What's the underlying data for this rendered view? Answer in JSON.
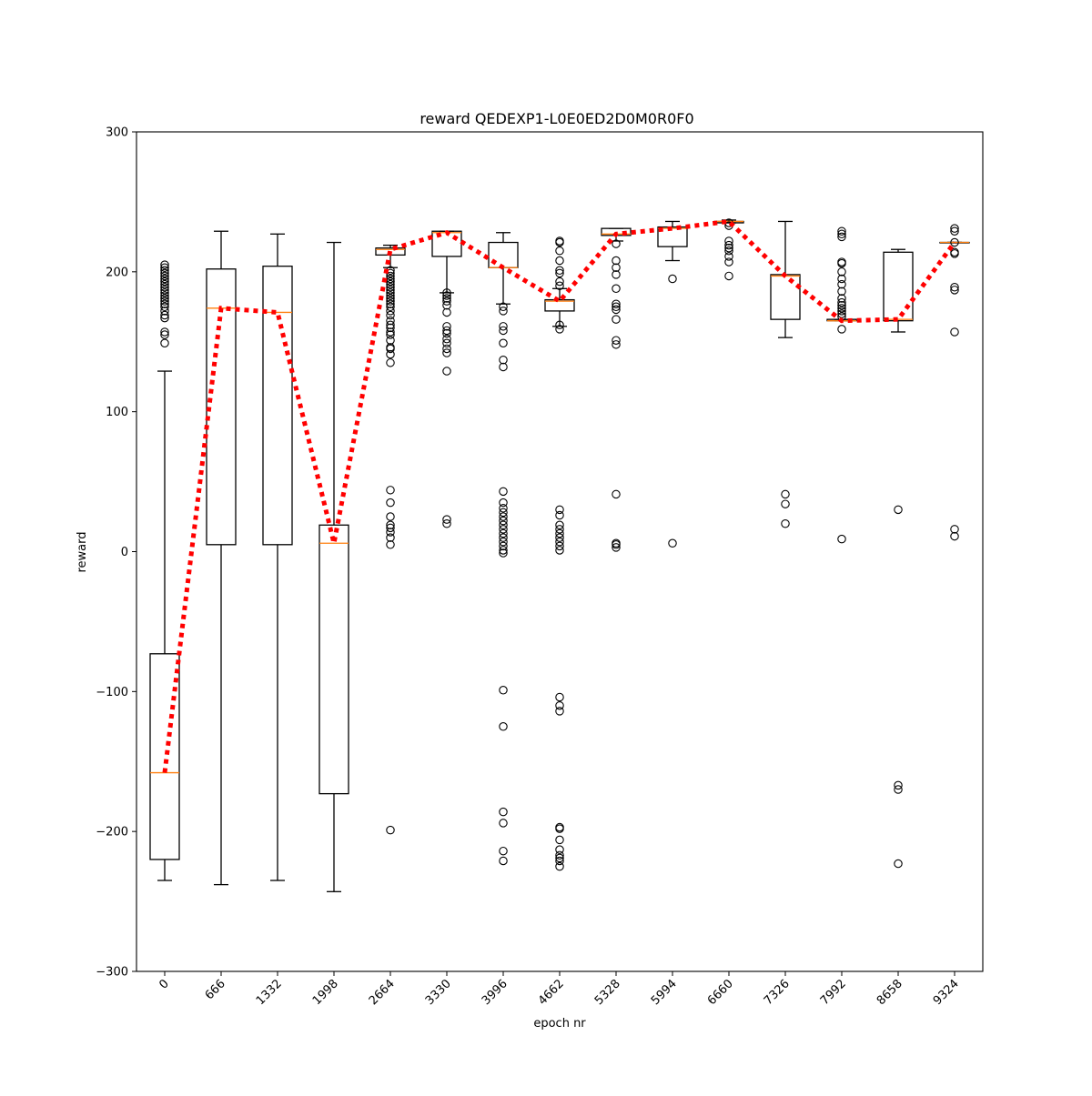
{
  "chart_data": {
    "type": "box",
    "title": "reward QEDEXP1-L0E0ED2D0M0R0F0",
    "xlabel": "epoch nr",
    "ylabel": "reward",
    "ylim": [
      -300,
      300
    ],
    "yticks": [
      -300,
      -200,
      -100,
      0,
      100,
      200,
      300
    ],
    "grid": false,
    "colors": {
      "box": "#000000",
      "median": "#ff7f0e",
      "trend": "#ff0000"
    },
    "categories": [
      "0",
      "666",
      "1332",
      "1998",
      "2664",
      "3330",
      "3996",
      "4662",
      "5328",
      "5994",
      "6660",
      "7326",
      "7992",
      "8658",
      "9324"
    ],
    "boxes": [
      {
        "whisker_low": -235,
        "q1": -220,
        "median": -158,
        "q3": -73,
        "whisker_high": 129,
        "outliers": [
          205,
          203,
          201,
          199,
          197,
          195,
          193,
          191,
          189,
          187,
          185,
          183,
          181,
          179,
          177,
          175,
          172,
          169,
          167,
          157,
          155,
          149
        ]
      },
      {
        "whisker_low": -238,
        "q1": 5,
        "median": 174,
        "q3": 202,
        "whisker_high": 229,
        "outliers": []
      },
      {
        "whisker_low": -235,
        "q1": 5,
        "median": 171,
        "q3": 204,
        "whisker_high": 227,
        "outliers": []
      },
      {
        "whisker_low": -243,
        "q1": -173,
        "median": 6,
        "q3": 19,
        "whisker_high": 221,
        "outliers": []
      },
      {
        "whisker_low": 203,
        "q1": 212,
        "median": 216,
        "q3": 217,
        "whisker_high": 219,
        "outliers": [
          201,
          199,
          197,
          195,
          193,
          191,
          189,
          187,
          185,
          183,
          181,
          179,
          177,
          175,
          172,
          169,
          165,
          162,
          160,
          157,
          155,
          151,
          146,
          145,
          141,
          135,
          44,
          35,
          25,
          19,
          17,
          14,
          10,
          5,
          -199
        ]
      },
      {
        "whisker_low": 185,
        "q1": 211,
        "median": 228,
        "q3": 229,
        "whisker_high": 229,
        "outliers": [
          185,
          183,
          181,
          179,
          176,
          171,
          161,
          158,
          156,
          152,
          149,
          145,
          142,
          129,
          23,
          20
        ]
      },
      {
        "whisker_low": 177,
        "q1": 203,
        "median": 203,
        "q3": 221,
        "whisker_high": 228,
        "outliers": [
          175,
          172,
          161,
          158,
          149,
          137,
          132,
          43,
          35,
          31,
          28,
          25,
          22,
          19,
          16,
          13,
          10,
          7,
          4,
          1,
          -1,
          -99,
          -125,
          -186,
          -194,
          -214,
          -221
        ]
      },
      {
        "whisker_low": 161,
        "q1": 172,
        "median": 179,
        "q3": 180,
        "whisker_high": 188,
        "outliers": [
          222,
          221,
          215,
          208,
          201,
          199,
          193,
          190,
          162,
          159,
          30,
          26,
          19,
          16,
          13,
          10,
          7,
          4,
          1,
          -104,
          -110,
          -114,
          -197,
          -198,
          -206,
          -213,
          -217,
          -219,
          -221,
          -225
        ]
      },
      {
        "whisker_low": 222,
        "q1": 226,
        "median": 227,
        "q3": 231,
        "whisker_high": 231,
        "outliers": [
          220,
          208,
          203,
          198,
          188,
          177,
          175,
          173,
          166,
          151,
          148,
          41,
          6,
          5,
          3
        ]
      },
      {
        "whisker_low": 208,
        "q1": 218,
        "median": 231,
        "q3": 232,
        "whisker_high": 236,
        "outliers": [
          195,
          6
        ]
      },
      {
        "whisker_low": 235,
        "q1": 235,
        "median": 236,
        "q3": 236,
        "whisker_high": 237,
        "outliers": [
          235,
          233,
          222,
          219,
          217,
          215,
          211,
          207,
          197
        ]
      },
      {
        "whisker_low": 153,
        "q1": 166,
        "median": 197,
        "q3": 198,
        "whisker_high": 236,
        "outliers": [
          41,
          34,
          20
        ]
      },
      {
        "whisker_low": 165,
        "q1": 165,
        "median": 165,
        "q3": 166,
        "whisker_high": 166,
        "outliers": [
          229,
          227,
          225,
          207,
          206,
          200,
          195,
          191,
          186,
          181,
          178,
          176,
          174,
          172,
          170,
          168,
          159,
          9
        ]
      },
      {
        "whisker_low": 157,
        "q1": 165,
        "median": 166,
        "q3": 214,
        "whisker_high": 216,
        "outliers": [
          30,
          -167,
          -170,
          -223
        ]
      },
      {
        "whisker_low": 221,
        "q1": 221,
        "median": 221,
        "q3": 221,
        "whisker_high": 221,
        "outliers": [
          231,
          229,
          221,
          214,
          213,
          189,
          187,
          157,
          16,
          11
        ]
      }
    ],
    "trend_line": {
      "style": "dotted",
      "values": [
        -158,
        174,
        171,
        6,
        216,
        228,
        203,
        179,
        227,
        231,
        236,
        197,
        165,
        166,
        221
      ]
    }
  }
}
